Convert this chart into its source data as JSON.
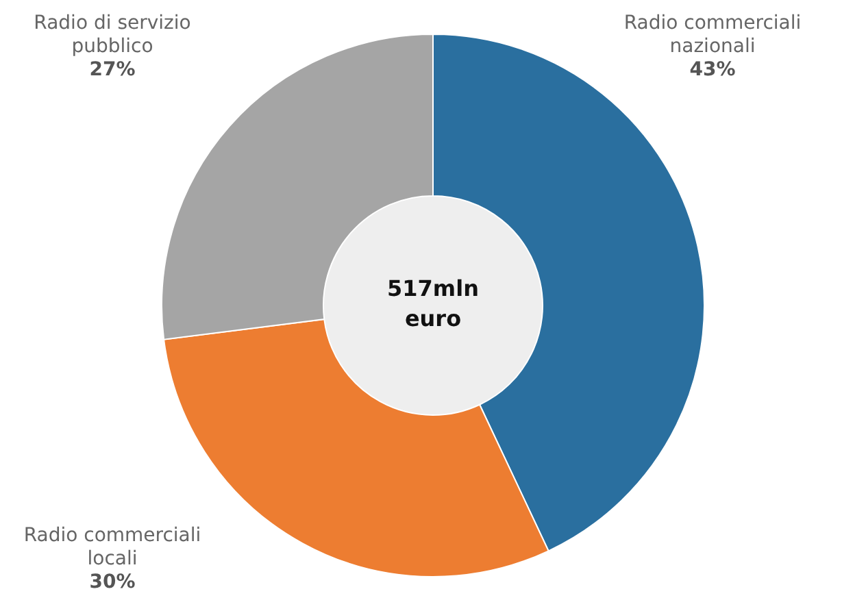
{
  "chart_data": {
    "type": "donut",
    "categories": [
      "Radio commerciali nazionali",
      "Radio commerciali locali",
      "Radio di servizio pubblico"
    ],
    "values": [
      43,
      30,
      27
    ],
    "colors": [
      "#2a6f9f",
      "#ed7d31",
      "#a5a5a5"
    ],
    "value_labels": [
      "43%",
      "30%",
      "27%"
    ],
    "annotations": [
      "517mln euro"
    ]
  }
}
